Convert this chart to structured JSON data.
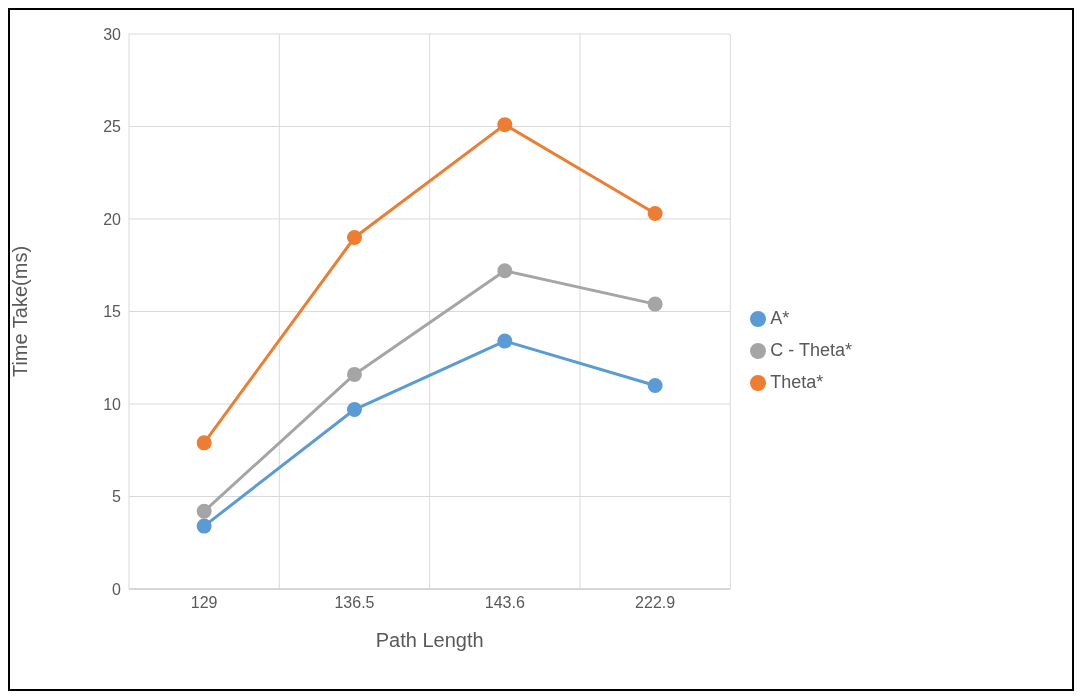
{
  "chart_data": {
    "type": "line",
    "xlabel": "Path Length",
    "ylabel": "Time Take(ms)",
    "categories": [
      "129",
      "136.5",
      "143.6",
      "222.9"
    ],
    "series": [
      {
        "name": "A*",
        "color": "#5b9bd5",
        "values": [
          3.4,
          9.7,
          13.4,
          11.0
        ]
      },
      {
        "name": "Theta*",
        "color": "#ed7d31",
        "values": [
          7.9,
          19.0,
          25.1,
          20.3
        ]
      },
      {
        "name": "C - Theta*",
        "color": "#a5a5a5",
        "values": [
          4.2,
          11.6,
          17.2,
          15.4
        ]
      }
    ],
    "ylim": [
      0,
      30
    ],
    "yticks": [
      0,
      5,
      10,
      15,
      20,
      25,
      30
    ],
    "grid": true,
    "legend": "right",
    "marker": "circle",
    "line_style": "solid"
  }
}
